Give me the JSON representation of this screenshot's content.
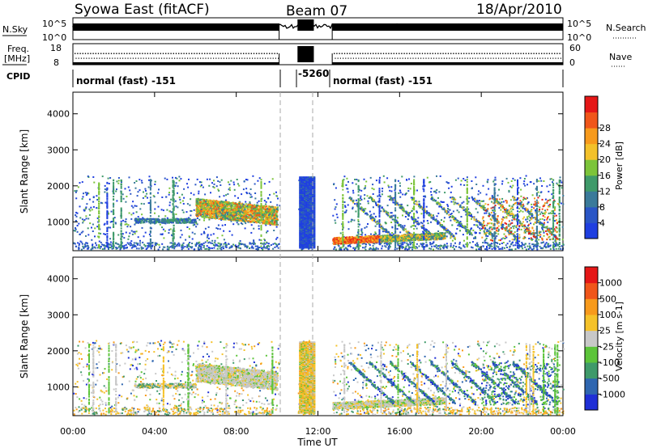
{
  "header": {
    "station": "Syowa East (fitACF)",
    "beam": "Beam 07",
    "date": "18/Apr/2010"
  },
  "top_panels": {
    "nsky_label": "N.Sky",
    "nsky_ticks": [
      "10^5",
      "10^0"
    ],
    "nsearch_label": "N.Search",
    "nsearch_ticks": [
      "10^5",
      "10^0"
    ],
    "freq_label_line1": "Freq.",
    "freq_label_line2": "[MHz]",
    "freq_ticks": [
      "18",
      "8"
    ],
    "nave_label": "Nave",
    "nave_ticks": [
      "60",
      "0"
    ],
    "cpid_label": "CPID",
    "cpid_segments": [
      "normal (fast) -151",
      "-5260",
      "normal (fast) -151"
    ]
  },
  "chart_data": [
    {
      "type": "heatmap",
      "name": "power",
      "ylabel": "Slant Range [km]",
      "xlabel": "Time UT",
      "y_ticks": [
        "1000",
        "2000",
        "3000",
        "4000"
      ],
      "x_ticks": [
        "00:00",
        "04:00",
        "08:00",
        "12:00",
        "16:00",
        "20:00",
        "00:00"
      ],
      "ylim": [
        200,
        4600
      ],
      "colorbar": {
        "label": "Power [dB]",
        "ticks": [
          "4",
          "8",
          "12",
          "16",
          "20",
          "24",
          "28"
        ],
        "colors": [
          "#1f3fe0",
          "#2a56c6",
          "#3a7a9a",
          "#3f9a6a",
          "#7cc43a",
          "#f3c12a",
          "#f79a1c",
          "#f0561a",
          "#e51717"
        ]
      }
    },
    {
      "type": "heatmap",
      "name": "velocity",
      "ylabel": "Slant Range [km]",
      "xlabel": "Time UT",
      "y_ticks": [
        "1000",
        "2000",
        "3000",
        "4000"
      ],
      "x_ticks": [
        "00:00",
        "04:00",
        "08:00",
        "12:00",
        "16:00",
        "20:00",
        "00:00"
      ],
      "ylim": [
        200,
        4600
      ],
      "colorbar": {
        "label": "Velocity [m s-1]",
        "ticks": [
          "1000",
          "500",
          "100",
          "25",
          "-25",
          "-100",
          "-500",
          "-1000"
        ],
        "colors": [
          "#1f2fd6",
          "#2f66b0",
          "#3f9a6a",
          "#5cc43a",
          "#c8c8c8",
          "#f5c22a",
          "#f79a1c",
          "#f0561a",
          "#e51717"
        ]
      }
    }
  ],
  "palette": {
    "power": [
      "#1f3fe0",
      "#2a56c6",
      "#3a7a9a",
      "#3f9a6a",
      "#7cc43a",
      "#f3c12a",
      "#f79a1c",
      "#f0561a",
      "#e51717"
    ],
    "velocity": [
      "#1f2fd6",
      "#2f66b0",
      "#3f9a6a",
      "#5cc43a",
      "#c8c8c8",
      "#f5c22a",
      "#f79a1c",
      "#f0561a",
      "#e51717"
    ]
  }
}
